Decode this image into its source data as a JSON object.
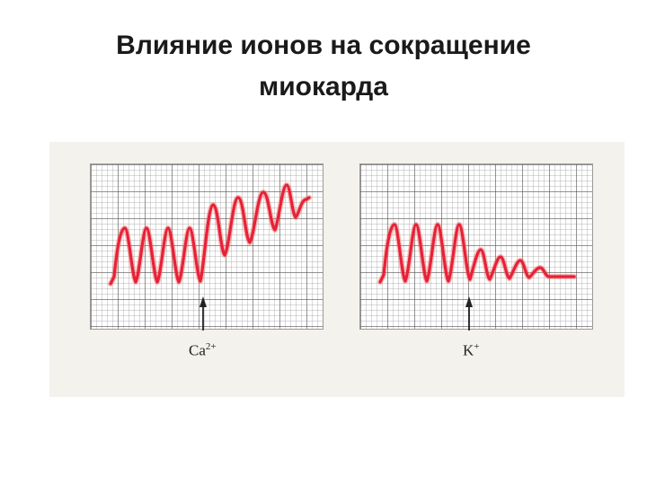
{
  "title": {
    "line1": "Влияние ионов на сокращение",
    "line2": "миокарда"
  },
  "panels": [
    {
      "ion": "Ca",
      "charge": "2+"
    },
    {
      "ion": "K",
      "charge": "+"
    }
  ],
  "colors": {
    "trace": "#e8203a",
    "trace_glow": "#f06a5a",
    "arrow": "#222222"
  }
}
